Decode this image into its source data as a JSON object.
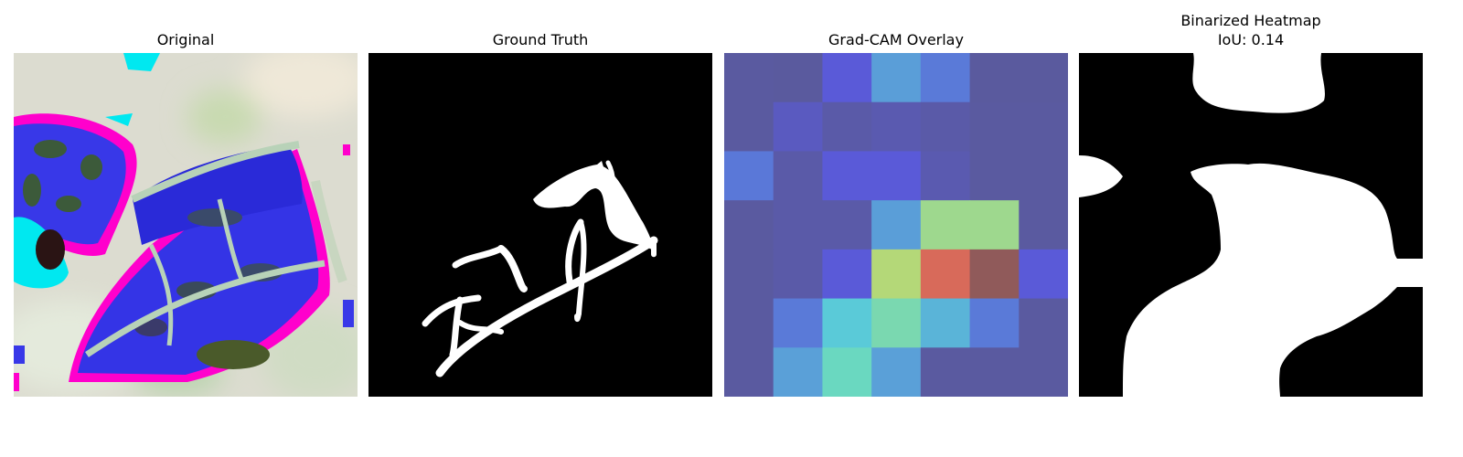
{
  "panels": [
    {
      "title": "Original"
    },
    {
      "title": "Ground Truth"
    },
    {
      "title": "Grad-CAM Overlay"
    },
    {
      "title": "Binarized Heatmap",
      "subtitle": "IoU: 0.14"
    }
  ],
  "gradcam_grid": [
    [
      "#5a5aa0",
      "#5a5a9e",
      "#5a5ad8",
      "#5a9ed8",
      "#5a7ad8",
      "#5a5a9e",
      "#5a5a9e"
    ],
    [
      "#5a5aa0",
      "#5a5ac0",
      "#5a5aa8",
      "#5a5ab0",
      "#5a5aa8",
      "#5a5aa0",
      "#5a5aa0"
    ],
    [
      "#5a78d8",
      "#5a5aa8",
      "#5a5ad8",
      "#5a5ad8",
      "#5a5ab0",
      "#5a5aa0",
      "#5a5aa0"
    ],
    [
      "#5a5aa0",
      "#5a5aa8",
      "#5a5aa8",
      "#5a9ed8",
      "#9ed88e",
      "#9ed88e",
      "#5a5aa0"
    ],
    [
      "#5a5aa0",
      "#5a5aa8",
      "#5a5ad8",
      "#b4d878",
      "#d86a5a",
      "#905a5a",
      "#5a5ad8"
    ],
    [
      "#5a5aa0",
      "#5a7ad8",
      "#5acad8",
      "#7ad8b0",
      "#5ab4d8",
      "#5a7ad8",
      "#5a5aa0"
    ],
    [
      "#5a5aa0",
      "#5aa0d8",
      "#6ad8c0",
      "#5aa0d8",
      "#5a5aa0",
      "#5a5aa0",
      "#5a5aa0"
    ]
  ]
}
